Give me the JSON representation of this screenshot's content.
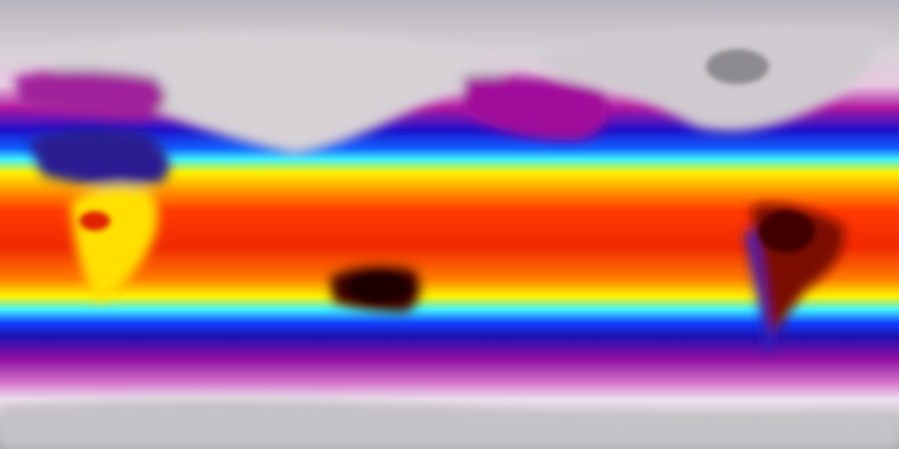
{
  "map": {
    "type": "global-temperature-heatmap",
    "projection": "equirectangular",
    "colors": {
      "polar": "#c9c5cc",
      "cold": "#a0109a",
      "cool": "#1010d0",
      "mild": "#30e8ff",
      "warm": "#fff000",
      "hot": "#ff3000",
      "hottest": "#300000"
    }
  }
}
